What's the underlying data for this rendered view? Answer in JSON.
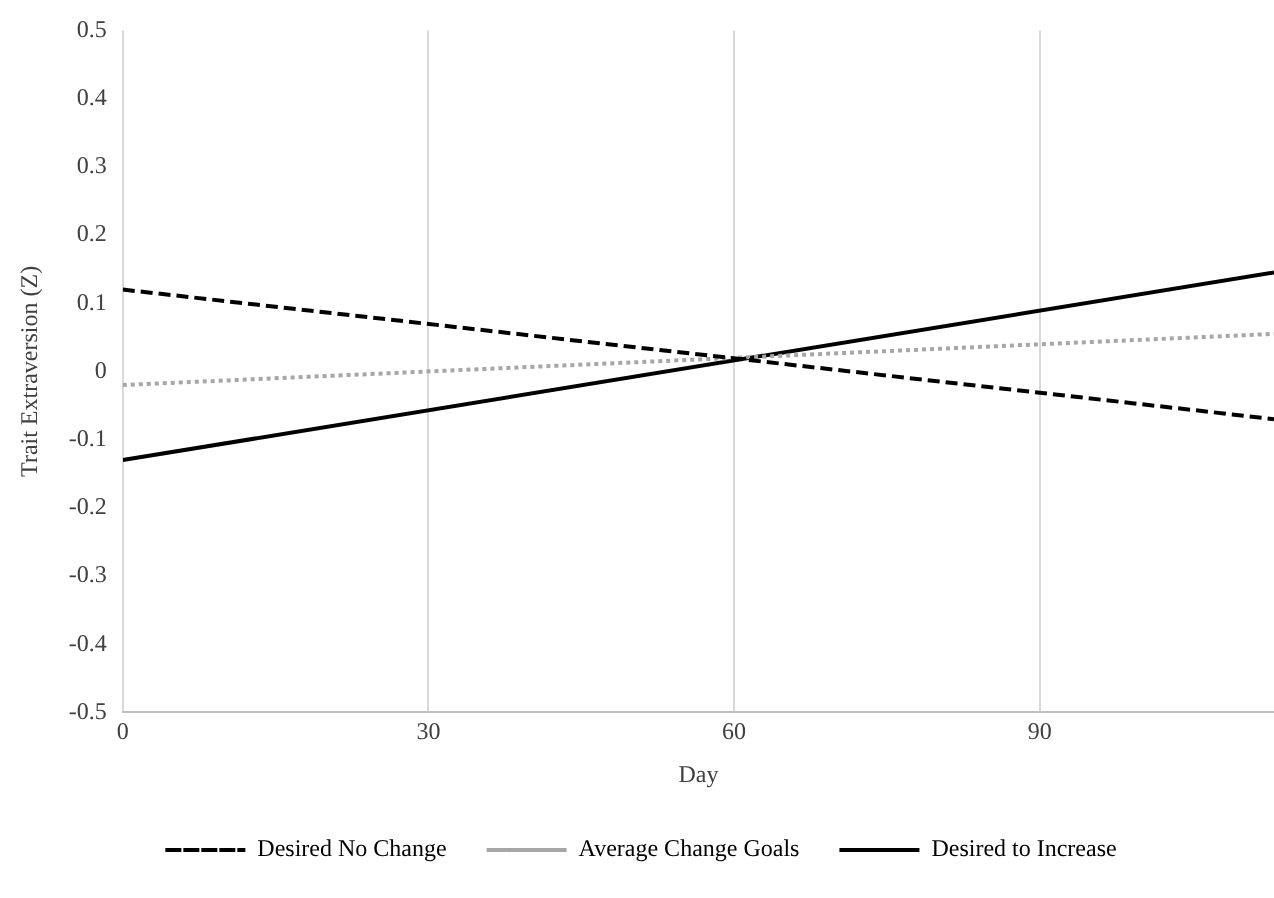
{
  "chart_data": {
    "type": "line",
    "xlabel": "Day",
    "ylabel": "Trait Extraversion (Z)",
    "x": [
      0,
      113
    ],
    "xlim": [
      0,
      113
    ],
    "xticks": [
      0,
      30,
      60,
      90
    ],
    "ylim": [
      -0.5,
      0.5
    ],
    "yticks": [
      -0.5,
      -0.4,
      -0.3,
      -0.2,
      -0.1,
      0,
      0.1,
      0.2,
      0.3,
      0.4,
      0.5
    ],
    "grid": "x",
    "legend": "bottom",
    "marker": "none",
    "series": [
      {
        "name": "Desired No Change",
        "color": "#000000",
        "line_style": "dashed",
        "values": [
          0.12,
          -0.07
        ]
      },
      {
        "name": "Average Change Goals",
        "color": "#a6a6a6",
        "line_style": "dotted",
        "values": [
          -0.02,
          0.055
        ]
      },
      {
        "name": "Desired to Increase",
        "color": "#000000",
        "line_style": "solid",
        "values": [
          -0.13,
          0.145
        ]
      }
    ]
  }
}
